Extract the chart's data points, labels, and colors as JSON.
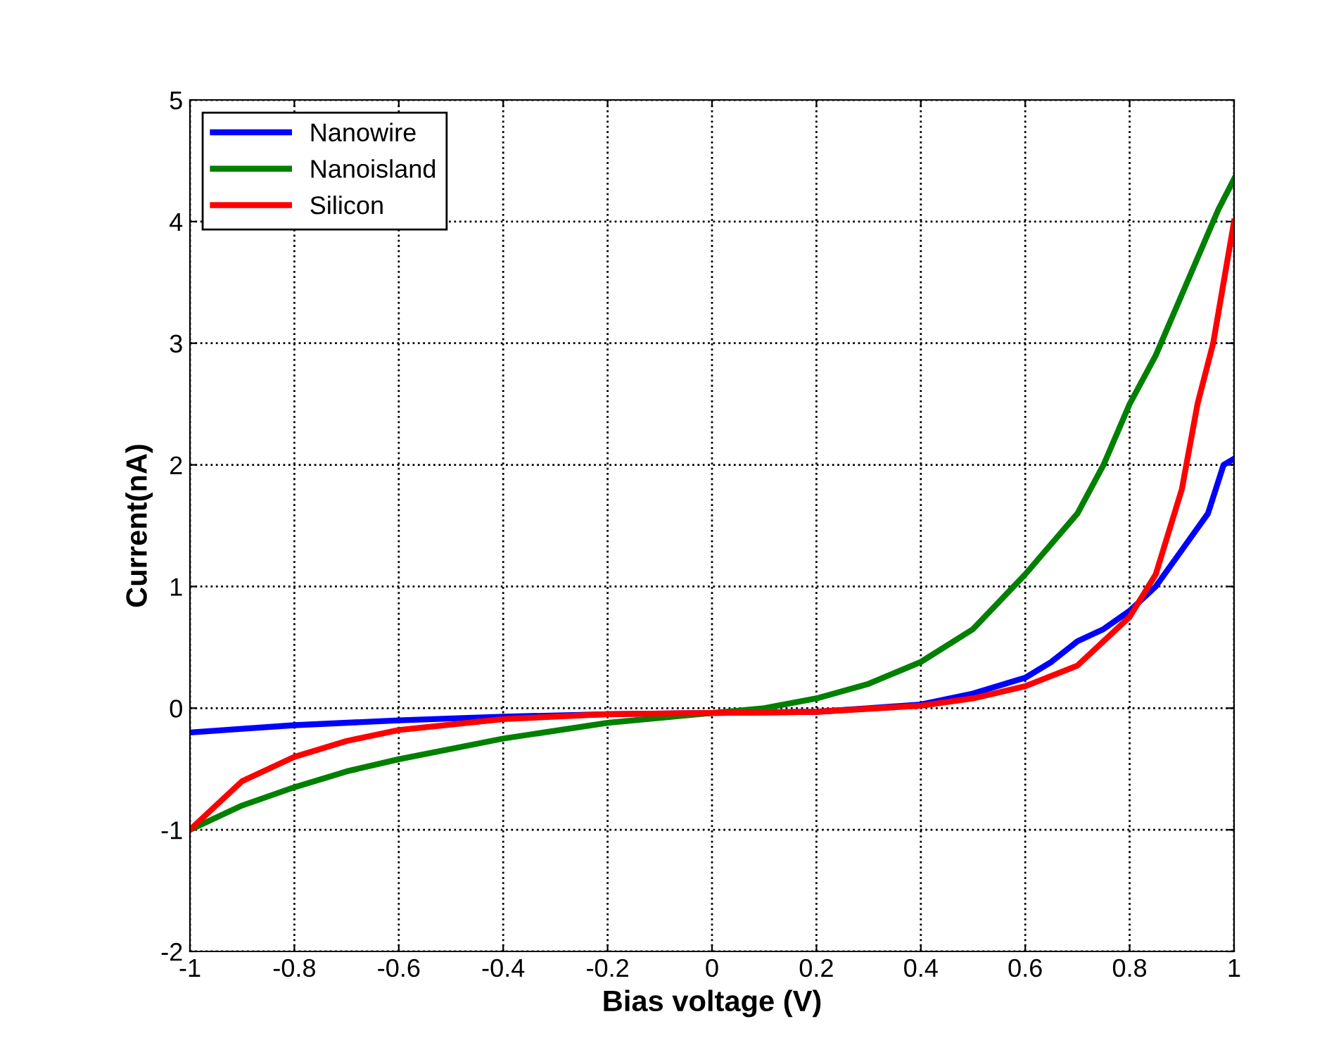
{
  "chart_data": {
    "type": "line",
    "xlabel": "Bias voltage (V)",
    "ylabel": "Current(nA)",
    "xlim": [
      -1,
      1
    ],
    "ylim": [
      -2,
      5
    ],
    "xticks": [
      -1,
      -0.8,
      -0.6,
      -0.4,
      -0.2,
      0,
      0.2,
      0.4,
      0.6,
      0.8,
      1
    ],
    "yticks": [
      -2,
      -1,
      0,
      1,
      2,
      3,
      4,
      5
    ],
    "grid": true,
    "legend": "top left",
    "line_style": "solid",
    "series": [
      {
        "name": "Nanowire",
        "color": "#0000ff",
        "x": [
          -1,
          -0.9,
          -0.8,
          -0.6,
          -0.4,
          -0.2,
          0,
          0.2,
          0.3,
          0.4,
          0.5,
          0.6,
          0.65,
          0.7,
          0.75,
          0.8,
          0.85,
          0.9,
          0.95,
          0.98,
          1
        ],
        "values": [
          -0.2,
          -0.17,
          -0.14,
          -0.1,
          -0.07,
          -0.05,
          -0.04,
          -0.03,
          0,
          0.03,
          0.12,
          0.25,
          0.38,
          0.55,
          0.65,
          0.8,
          1.0,
          1.3,
          1.6,
          2.0,
          2.05
        ]
      },
      {
        "name": "Nanoisland",
        "color": "#008000",
        "x": [
          -1,
          -0.9,
          -0.8,
          -0.7,
          -0.6,
          -0.4,
          -0.2,
          0,
          0.1,
          0.2,
          0.3,
          0.4,
          0.5,
          0.6,
          0.7,
          0.75,
          0.8,
          0.85,
          0.9,
          0.95,
          0.97,
          1
        ],
        "values": [
          -1.0,
          -0.8,
          -0.65,
          -0.52,
          -0.42,
          -0.25,
          -0.12,
          -0.04,
          0,
          0.08,
          0.2,
          0.38,
          0.65,
          1.1,
          1.6,
          2.0,
          2.5,
          2.9,
          3.4,
          3.9,
          4.1,
          4.35
        ]
      },
      {
        "name": "Silicon",
        "color": "#ff0000",
        "x": [
          -1,
          -0.95,
          -0.9,
          -0.8,
          -0.7,
          -0.6,
          -0.4,
          -0.2,
          0,
          0.2,
          0.4,
          0.5,
          0.6,
          0.7,
          0.8,
          0.85,
          0.9,
          0.93,
          0.96,
          0.98,
          1
        ],
        "values": [
          -1.0,
          -0.8,
          -0.6,
          -0.4,
          -0.27,
          -0.18,
          -0.09,
          -0.05,
          -0.04,
          -0.03,
          0.02,
          0.08,
          0.18,
          0.35,
          0.75,
          1.1,
          1.8,
          2.5,
          3.0,
          3.5,
          4.0
        ]
      }
    ]
  }
}
